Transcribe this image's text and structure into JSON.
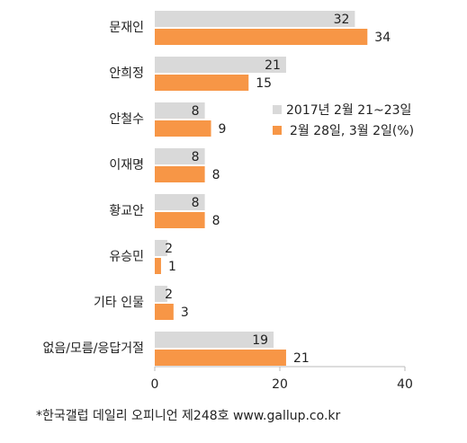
{
  "chart_data": {
    "type": "bar",
    "orientation": "horizontal",
    "categories": [
      "문재인",
      "안희정",
      "안철수",
      "이재명",
      "황교안",
      "유승민",
      "기타 인물",
      "없음/모름/응답거절"
    ],
    "series": [
      {
        "name": "2017년 2월 21~23일",
        "color": "#d9d9d9",
        "values": [
          32,
          21,
          8,
          8,
          8,
          2,
          2,
          19
        ]
      },
      {
        "name": "2월 28일, 3월 2일(%)",
        "color": "#f79646",
        "values": [
          34,
          15,
          9,
          8,
          8,
          1,
          3,
          21
        ]
      }
    ],
    "xlim": [
      0,
      40
    ],
    "xticks": [
      0,
      20,
      40
    ],
    "source": "*한국갤럽 데일리 오피니언 제248호 www.gallup.co.kr"
  }
}
